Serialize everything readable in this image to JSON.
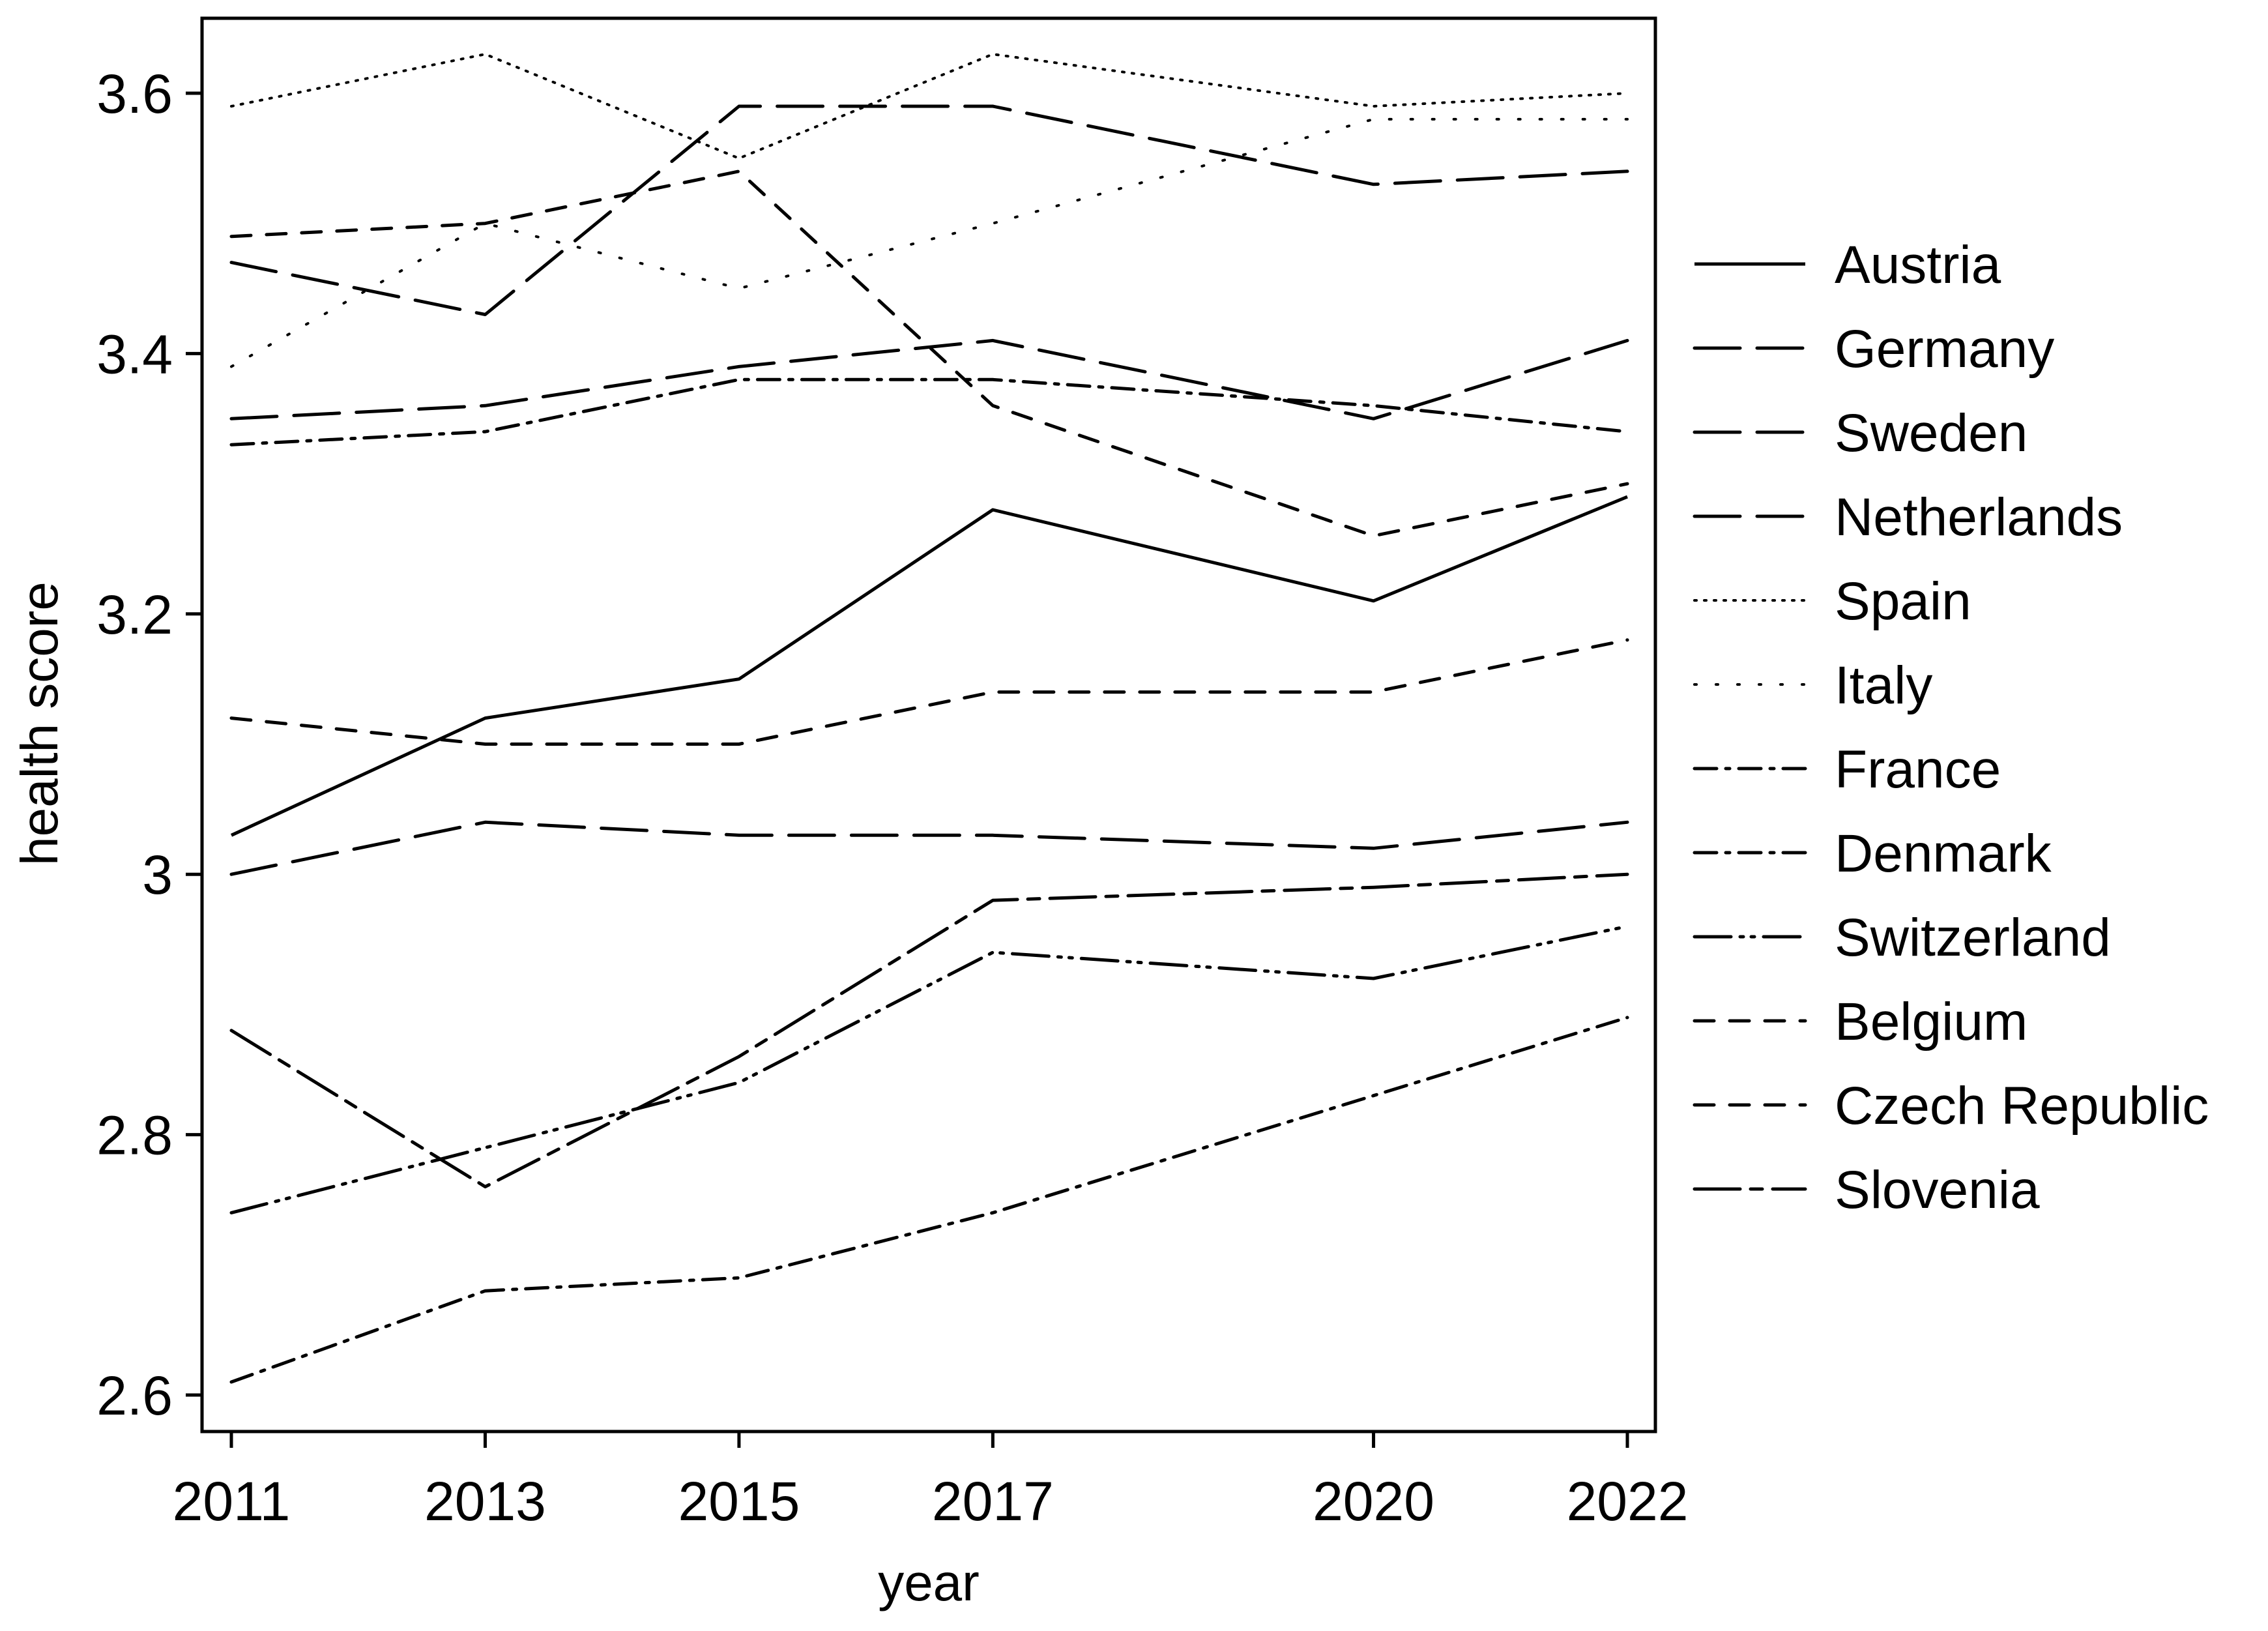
{
  "chart_data": {
    "type": "line",
    "title": "",
    "xlabel": "year",
    "ylabel": "health score",
    "x": [
      2011,
      2013,
      2015,
      2017,
      2020,
      2022
    ],
    "xticks": [
      "2011",
      "2013",
      "2015",
      "2017",
      "2020",
      "2022"
    ],
    "yticks": [
      "2.6",
      "2.8",
      "3",
      "3.2",
      "3.4",
      "3.6"
    ],
    "ytick_values": [
      2.6,
      2.8,
      3.0,
      3.2,
      3.4,
      3.6
    ],
    "xlim": [
      2011,
      2022
    ],
    "ylim": [
      2.57,
      3.66
    ],
    "grid": false,
    "legend_position": "right",
    "line_color": "#000000",
    "series": [
      {
        "name": "Austria",
        "dash": "solid",
        "values": [
          3.03,
          3.12,
          3.15,
          3.28,
          3.21,
          3.29
        ]
      },
      {
        "name": "Germany",
        "dash": "long-dash",
        "values": [
          3.47,
          3.43,
          3.59,
          3.59,
          3.53,
          3.54
        ]
      },
      {
        "name": "Sweden",
        "dash": "long-dash",
        "values": [
          3.35,
          3.36,
          3.39,
          3.41,
          3.35,
          3.41
        ]
      },
      {
        "name": "Netherlands",
        "dash": "long-dash",
        "values": [
          3.0,
          3.04,
          3.03,
          3.03,
          3.02,
          3.04
        ]
      },
      {
        "name": "Spain",
        "dash": "dot",
        "values": [
          3.59,
          3.63,
          3.55,
          3.63,
          3.59,
          3.6
        ]
      },
      {
        "name": "Italy",
        "dash": "sparse-dot",
        "values": [
          3.39,
          3.5,
          3.45,
          3.5,
          3.58,
          3.58
        ]
      },
      {
        "name": "France",
        "dash": "dash-dot",
        "values": [
          2.61,
          2.68,
          2.69,
          2.74,
          2.83,
          2.89
        ]
      },
      {
        "name": "Denmark",
        "dash": "dash-dot",
        "values": [
          3.33,
          3.34,
          3.38,
          3.38,
          3.36,
          3.34
        ]
      },
      {
        "name": "Switzerland",
        "dash": "long-dash-dot-dot",
        "values": [
          2.74,
          2.79,
          2.84,
          2.94,
          2.92,
          2.96
        ]
      },
      {
        "name": "Belgium",
        "dash": "dash",
        "values": [
          3.12,
          3.1,
          3.1,
          3.14,
          3.14,
          3.18
        ]
      },
      {
        "name": "Czech Republic",
        "dash": "dash",
        "values": [
          3.49,
          3.5,
          3.54,
          3.36,
          3.26,
          3.3
        ]
      },
      {
        "name": "Slovenia",
        "dash": "long-short-dash",
        "values": [
          2.88,
          2.76,
          2.86,
          2.98,
          2.99,
          3.0
        ]
      }
    ]
  }
}
